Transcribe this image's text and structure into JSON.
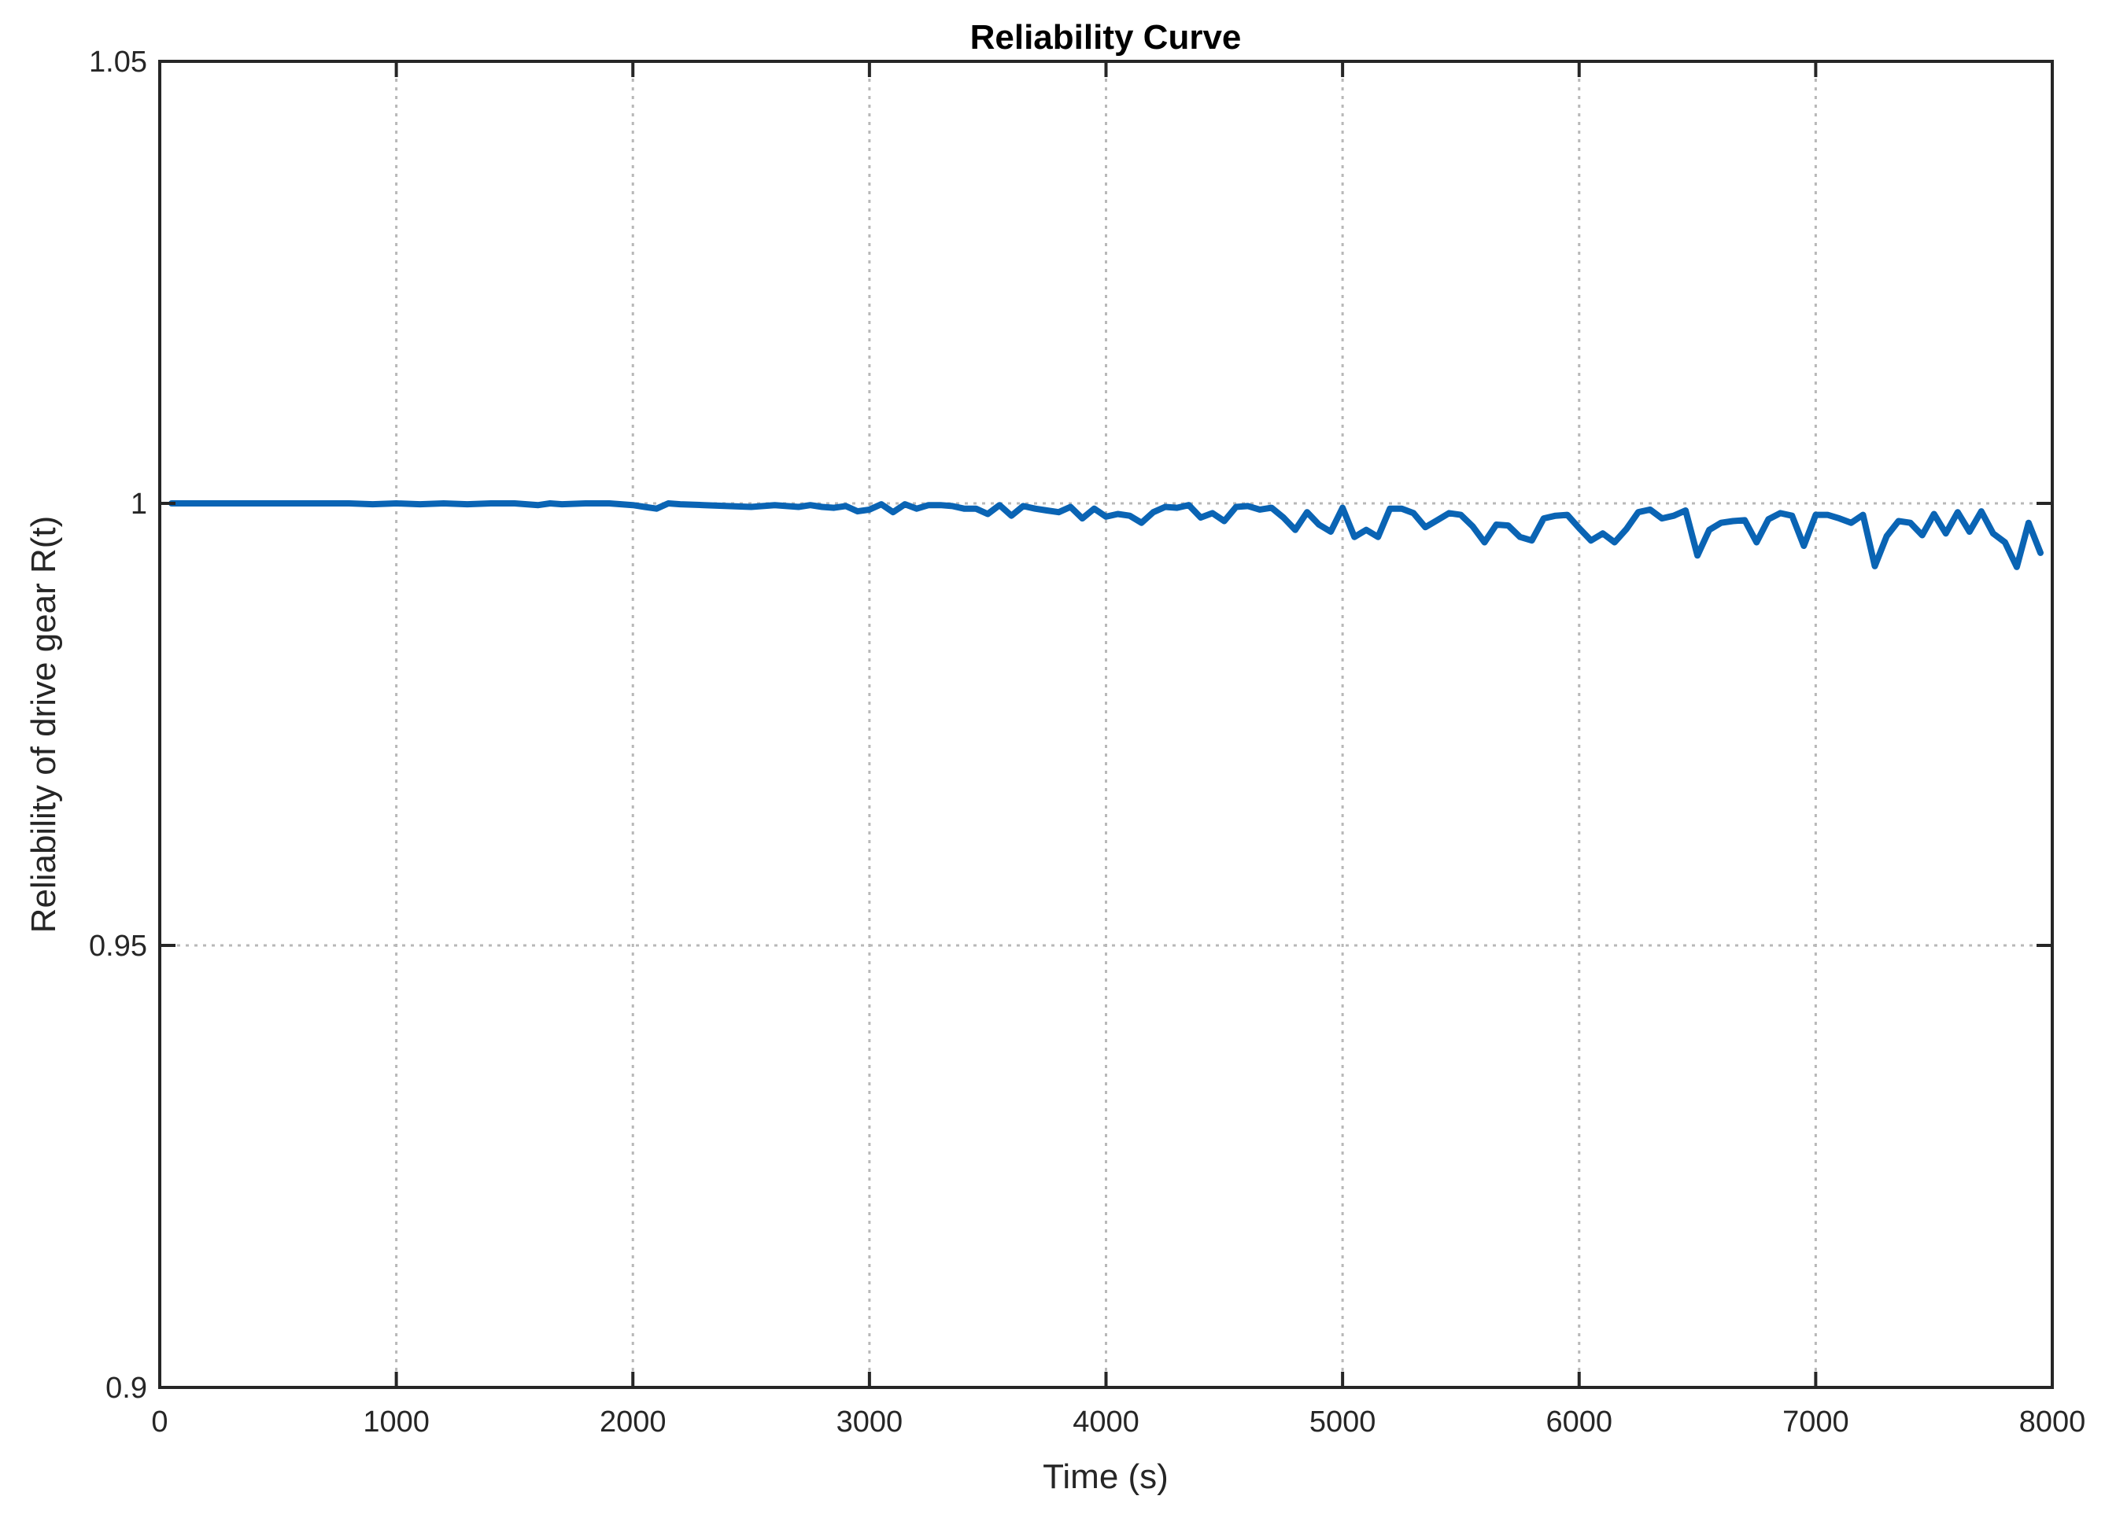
{
  "chart_data": {
    "type": "line",
    "title": "Reliability Curve",
    "xlabel": "Time (s)",
    "ylabel": "Reliability of drive gear R(t)",
    "xlim": [
      0,
      8000
    ],
    "ylim": [
      0.9,
      1.05
    ],
    "xticks": [
      0,
      1000,
      2000,
      3000,
      4000,
      5000,
      6000,
      7000,
      8000
    ],
    "xtick_labels": [
      "0",
      "1000",
      "2000",
      "3000",
      "4000",
      "5000",
      "6000",
      "7000",
      "8000"
    ],
    "yticks": [
      0.9,
      0.95,
      1,
      1.05
    ],
    "ytick_labels": [
      "0.9",
      "0.95",
      "1",
      "1.05"
    ],
    "grid": true,
    "series": [
      {
        "color": "#0a64b4",
        "x": [
          50,
          200,
          400,
          600,
          800,
          900,
          1000,
          1100,
          1200,
          1300,
          1400,
          1500,
          1600,
          1650,
          1700,
          1800,
          1900,
          2000,
          2050,
          2100,
          2150,
          2200,
          2300,
          2400,
          2500,
          2600,
          2700,
          2750,
          2800,
          2850,
          2900,
          2950,
          3000,
          3050,
          3100,
          3150,
          3200,
          3250,
          3300,
          3350,
          3400,
          3450,
          3500,
          3550,
          3600,
          3650,
          3700,
          3750,
          3800,
          3850,
          3900,
          3950,
          4000,
          4050,
          4100,
          4150,
          4200,
          4250,
          4300,
          4350,
          4400,
          4450,
          4500,
          4550,
          4600,
          4650,
          4700,
          4750,
          4800,
          4850,
          4900,
          4950,
          5000,
          5050,
          5100,
          5150,
          5200,
          5250,
          5300,
          5350,
          5400,
          5450,
          5500,
          5550,
          5600,
          5650,
          5700,
          5750,
          5800,
          5850,
          5900,
          5950,
          6000,
          6050,
          6100,
          6150,
          6200,
          6250,
          6300,
          6350,
          6400,
          6450,
          6500,
          6550,
          6600,
          6650,
          6700,
          6750,
          6800,
          6850,
          6900,
          6950,
          7000,
          7050,
          7100,
          7150,
          7200,
          7250,
          7300,
          7350,
          7400,
          7450,
          7500,
          7550,
          7600,
          7650,
          7700,
          7750,
          7800,
          7850,
          7900,
          7950
        ],
        "y": [
          1.0,
          1.0,
          1.0,
          1.0,
          1.0,
          0.9999,
          1.0,
          0.9999,
          1.0,
          0.9999,
          1.0,
          1.0,
          0.9998,
          1.0,
          0.9999,
          1.0,
          1.0,
          0.9998,
          0.9996,
          0.9994,
          1.0,
          0.9999,
          0.9998,
          0.9997,
          0.9996,
          0.9998,
          0.9996,
          0.9998,
          0.9996,
          0.9995,
          0.9997,
          0.9991,
          0.9993,
          0.9999,
          0.999,
          0.9999,
          0.9994,
          0.9998,
          0.9998,
          0.9997,
          0.9994,
          0.9994,
          0.9988,
          0.9998,
          0.9986,
          0.9997,
          0.9994,
          0.9992,
          0.999,
          0.9996,
          0.9983,
          0.9994,
          0.9985,
          0.9988,
          0.9986,
          0.9978,
          0.999,
          0.9996,
          0.9995,
          0.9998,
          0.9984,
          0.9989,
          0.998,
          0.9996,
          0.9997,
          0.9993,
          0.9995,
          0.9984,
          0.997,
          0.999,
          0.9976,
          0.9968,
          0.9995,
          0.9962,
          0.997,
          0.9962,
          0.9994,
          0.9994,
          0.9989,
          0.9973,
          0.9981,
          0.9989,
          0.9987,
          0.9974,
          0.9956,
          0.9976,
          0.9975,
          0.9962,
          0.9958,
          0.9983,
          0.9986,
          0.9987,
          0.9972,
          0.9958,
          0.9966,
          0.9956,
          0.9971,
          0.999,
          0.9993,
          0.9983,
          0.9986,
          0.9992,
          0.9941,
          0.997,
          0.9978,
          0.998,
          0.9981,
          0.9956,
          0.9982,
          0.9989,
          0.9986,
          0.9952,
          0.9987,
          0.9987,
          0.9983,
          0.9978,
          0.9987,
          0.9929,
          0.9963,
          0.998,
          0.9978,
          0.9964,
          0.9988,
          0.9966,
          0.999,
          0.9968,
          0.9991,
          0.9966,
          0.9956,
          0.9928,
          0.9978,
          0.9944
        ]
      }
    ]
  }
}
